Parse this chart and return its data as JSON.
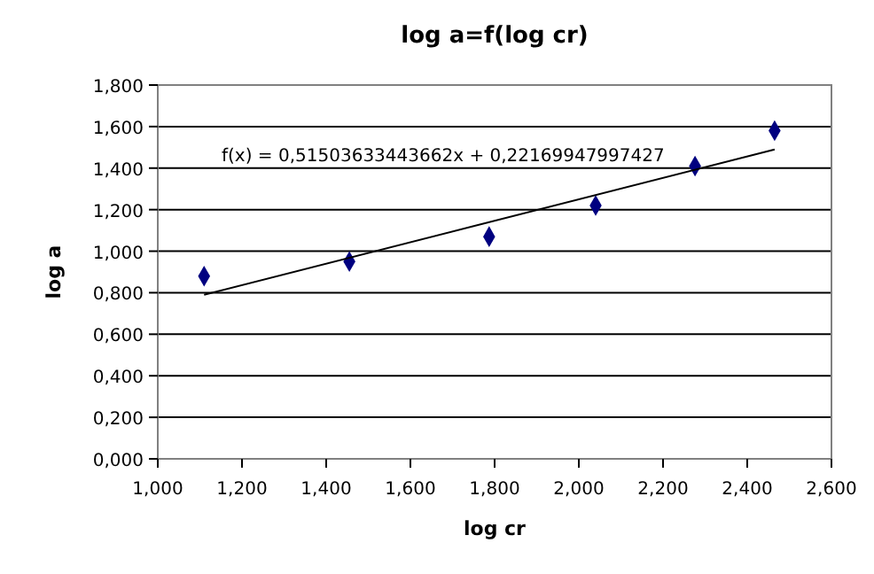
{
  "chart_data": {
    "type": "scatter",
    "title": "log a=f(log cr)",
    "xlabel": "log cr",
    "ylabel": "log a",
    "xlim": [
      1,
      2.6
    ],
    "ylim": [
      0,
      1.8
    ],
    "xticks": [
      {
        "value": 1,
        "label": "1,000"
      },
      {
        "value": 1.2,
        "label": "1,200"
      },
      {
        "value": 1.4,
        "label": "1,400"
      },
      {
        "value": 1.6,
        "label": "1,600"
      },
      {
        "value": 1.8,
        "label": "1,800"
      },
      {
        "value": 2,
        "label": "2,000"
      },
      {
        "value": 2.2,
        "label": "2,200"
      },
      {
        "value": 2.4,
        "label": "2,400"
      },
      {
        "value": 2.6,
        "label": "2,600"
      }
    ],
    "yticks": [
      {
        "value": 0,
        "label": "0,000"
      },
      {
        "value": 0.2,
        "label": "0,200"
      },
      {
        "value": 0.4,
        "label": "0,400"
      },
      {
        "value": 0.6,
        "label": "0,600"
      },
      {
        "value": 0.8,
        "label": "0,800"
      },
      {
        "value": 1,
        "label": "1,000"
      },
      {
        "value": 1.2,
        "label": "1,200"
      },
      {
        "value": 1.4,
        "label": "1,400"
      },
      {
        "value": 1.6,
        "label": "1,600"
      },
      {
        "value": 1.8,
        "label": "1,800"
      }
    ],
    "grid": "y",
    "annotations": [
      "f(x) = 0,51503633443662x + 0,22169947997427"
    ],
    "series": [
      {
        "color": "#000080",
        "marker": "diamond",
        "x": [
          1.11,
          1.455,
          1.787,
          2.04,
          2.276,
          2.465
        ],
        "values": [
          0.88,
          0.95,
          1.07,
          1.22,
          1.41,
          1.58
        ]
      },
      {
        "type": "line",
        "color": "#000000",
        "marker": "none",
        "x": [
          1.11,
          2.465
        ],
        "values": [
          0.79,
          1.49
        ]
      }
    ]
  }
}
